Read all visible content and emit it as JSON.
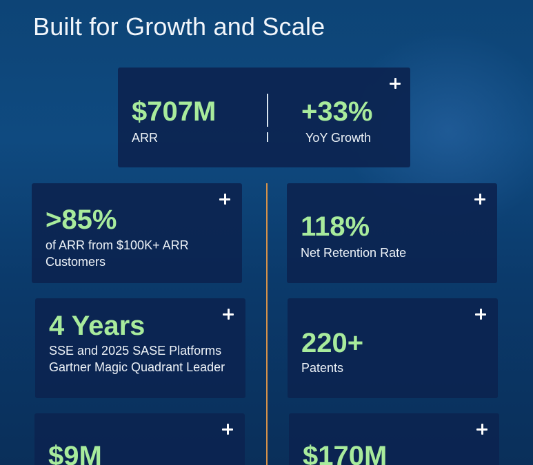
{
  "title": "Built for Growth and Scale",
  "colors": {
    "accent_value": "#a8eb9c",
    "card_bg": "#0c2450",
    "center_line": "#d4914a"
  },
  "top_card": {
    "left": {
      "value": "$707M",
      "label": "ARR"
    },
    "right": {
      "value": "+33%",
      "label": "YoY Growth"
    }
  },
  "cards": [
    {
      "value": ">85%",
      "label": "of ARR from $100K+ ARR Customers"
    },
    {
      "value": "118%",
      "label": "Net Retention Rate"
    },
    {
      "value": "4 Years",
      "label": "SSE and 2025 SASE Platforms Gartner Magic Quadrant Leader"
    },
    {
      "value": "220+",
      "label": "Patents"
    },
    {
      "value": "$9M",
      "label": ""
    },
    {
      "value": "$170M",
      "label": ""
    }
  ],
  "icons": {
    "plus": "plus-icon"
  }
}
